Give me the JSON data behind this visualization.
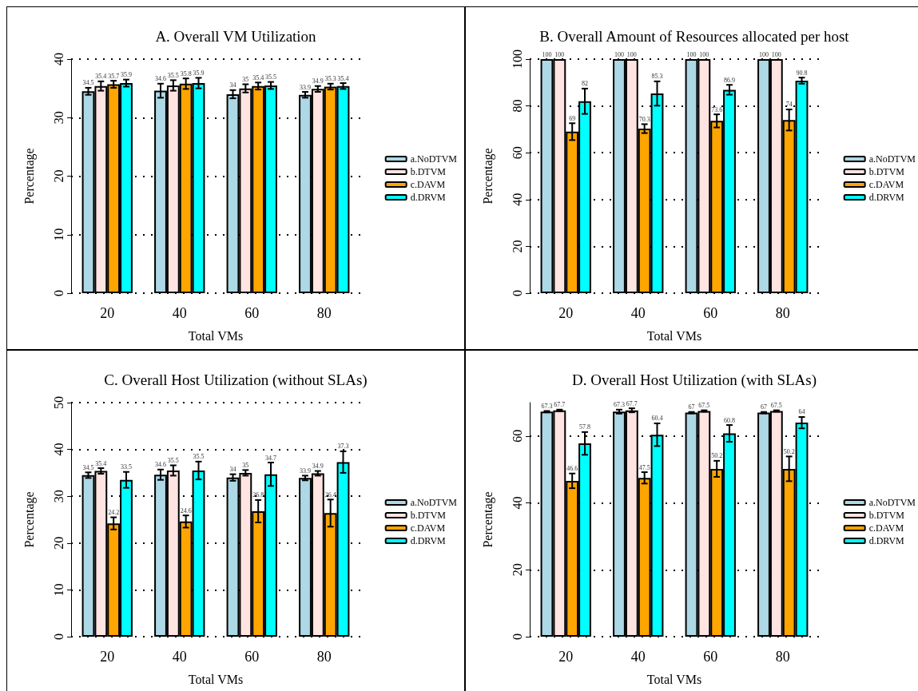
{
  "chart_data": [
    {
      "type": "bar",
      "title": "A. Overall VM Utilization",
      "xlabel": "Total VMs",
      "ylabel": "Percentage",
      "categories": [
        "20",
        "40",
        "60",
        "80"
      ],
      "ylim": [
        0,
        40
      ],
      "yticks": [
        0,
        10,
        20,
        30,
        40
      ],
      "grid": "y",
      "legend": "right",
      "data_labels": true,
      "series": [
        {
          "name": "a.NoDTVM",
          "color": "#add8e6",
          "values": [
            34.5,
            34.6,
            34,
            33.9
          ],
          "errors": [
            0.6,
            1.2,
            0.7,
            0.5
          ]
        },
        {
          "name": "b.DTVM",
          "color": "#ffe4e1",
          "values": [
            35.4,
            35.5,
            35,
            34.9
          ],
          "errors": [
            0.8,
            0.9,
            0.7,
            0.5
          ]
        },
        {
          "name": "c.DAVM",
          "color": "#ffa500",
          "values": [
            35.7,
            35.8,
            35.4,
            35.3
          ],
          "errors": [
            0.6,
            0.9,
            0.6,
            0.5
          ]
        },
        {
          "name": "d.DRVM",
          "color": "#00ffff",
          "values": [
            35.9,
            35.9,
            35.5,
            35.4
          ],
          "errors": [
            0.6,
            0.9,
            0.6,
            0.5
          ]
        }
      ]
    },
    {
      "type": "bar",
      "title": "B. Overall Amount of Resources allocated per host",
      "xlabel": "Total VMs",
      "ylabel": "Percentage",
      "categories": [
        "20",
        "40",
        "60",
        "80"
      ],
      "ylim": [
        0,
        100
      ],
      "yticks": [
        0,
        20,
        40,
        60,
        80,
        100
      ],
      "grid": "y",
      "legend": "right",
      "data_labels": true,
      "series": [
        {
          "name": "a.NoDTVM",
          "color": "#add8e6",
          "values": [
            100,
            100,
            100,
            100
          ],
          "errors": [
            null,
            null,
            null,
            null
          ]
        },
        {
          "name": "b.DTVM",
          "color": "#ffe4e1",
          "values": [
            100,
            100,
            100,
            100
          ],
          "errors": [
            null,
            null,
            null,
            null
          ]
        },
        {
          "name": "c.DAVM",
          "color": "#ffa500",
          "values": [
            69,
            70.3,
            73.6,
            74
          ],
          "errors": [
            3.6,
            1.9,
            2.8,
            4.5
          ]
        },
        {
          "name": "d.DRVM",
          "color": "#00ffff",
          "values": [
            82,
            85.3,
            86.9,
            90.8
          ],
          "errors": [
            5.4,
            5.2,
            2.1,
            1.3
          ]
        }
      ]
    },
    {
      "type": "bar",
      "title": "C. Overall Host Utilization (without SLAs)",
      "xlabel": "Total VMs",
      "ylabel": "Percentage",
      "categories": [
        "20",
        "40",
        "60",
        "80"
      ],
      "ylim": [
        0,
        50
      ],
      "yticks": [
        0,
        10,
        20,
        30,
        40,
        50
      ],
      "grid": "y",
      "legend": "right",
      "data_labels": true,
      "series": [
        {
          "name": "a.NoDTVM",
          "color": "#add8e6",
          "values": [
            34.5,
            34.6,
            34,
            33.9
          ],
          "errors": [
            0.6,
            1.1,
            0.7,
            0.5
          ]
        },
        {
          "name": "b.DTVM",
          "color": "#ffe4e1",
          "values": [
            35.4,
            35.5,
            35,
            34.9
          ],
          "errors": [
            0.6,
            1.1,
            0.6,
            0.5
          ]
        },
        {
          "name": "c.DAVM",
          "color": "#ffa500",
          "values": [
            24.2,
            24.6,
            26.8,
            26.4
          ],
          "errors": [
            1.3,
            1.3,
            2.4,
            2.9
          ]
        },
        {
          "name": "d.DRVM",
          "color": "#00ffff",
          "values": [
            33.5,
            35.5,
            34.7,
            37.3
          ],
          "errors": [
            1.7,
            1.9,
            2.5,
            2.3
          ]
        }
      ]
    },
    {
      "type": "bar",
      "title": "D. Overall Host Utilization (with SLAs)",
      "xlabel": "Total VMs",
      "ylabel": "Percentage",
      "categories": [
        "20",
        "40",
        "60",
        "80"
      ],
      "ylim": [
        0,
        70
      ],
      "yticks": [
        0,
        20,
        40,
        60
      ],
      "grid": "y",
      "legend": "right",
      "data_labels": true,
      "series": [
        {
          "name": "a.NoDTVM",
          "color": "#add8e6",
          "values": [
            67.3,
            67.3,
            67,
            67
          ],
          "errors": [
            0.2,
            0.6,
            0.2,
            0.2
          ]
        },
        {
          "name": "b.DTVM",
          "color": "#ffe4e1",
          "values": [
            67.7,
            67.7,
            67.5,
            67.5
          ],
          "errors": [
            0.2,
            0.6,
            0.2,
            0.2
          ]
        },
        {
          "name": "c.DAVM",
          "color": "#ffa500",
          "values": [
            46.6,
            47.5,
            50.2,
            50.2
          ],
          "errors": [
            2.2,
            1.7,
            2.4,
            3.7
          ]
        },
        {
          "name": "d.DRVM",
          "color": "#00ffff",
          "values": [
            57.8,
            60.4,
            60.8,
            64
          ],
          "errors": [
            3.4,
            3.4,
            2.5,
            1.7
          ]
        }
      ]
    }
  ]
}
